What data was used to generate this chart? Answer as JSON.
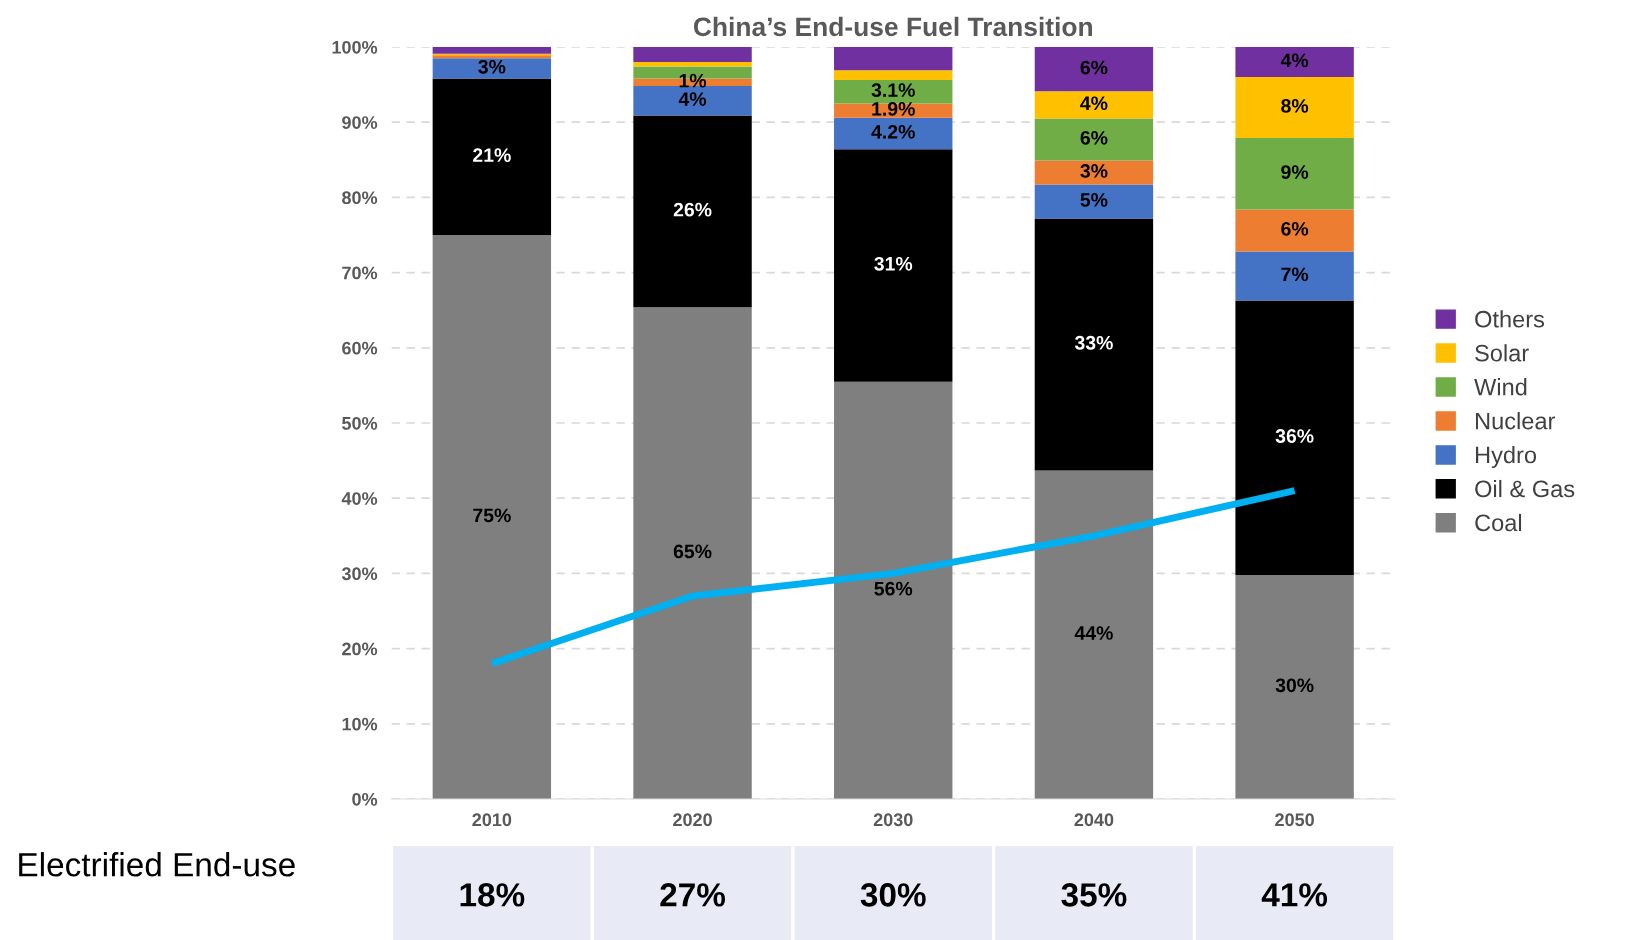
{
  "chart_data": {
    "type": "bar",
    "title": "China’s End-use Fuel Transition",
    "categories": [
      "2010",
      "2020",
      "2030",
      "2040",
      "2050"
    ],
    "stacked": true,
    "series": [
      {
        "name": "Coal",
        "color": "#7f7f7f",
        "values": [
          75.0,
          65.4,
          55.5,
          43.7,
          29.8
        ],
        "value_labels": [
          "75%",
          "65%",
          "56%",
          "44%",
          "30%"
        ]
      },
      {
        "name": "Oil & Gas",
        "color": "#000000",
        "values": [
          20.8,
          25.5,
          30.9,
          33.5,
          36.5
        ],
        "value_labels": [
          "21%",
          "26%",
          "31%",
          "33%",
          "36%"
        ]
      },
      {
        "name": "Hydro",
        "color": "#4472c4",
        "values": [
          2.7,
          3.9,
          4.2,
          4.5,
          6.5
        ],
        "value_labels": [
          "3%",
          "4%",
          "4.2%",
          "5%",
          "7%"
        ]
      },
      {
        "name": "Nuclear",
        "color": "#ed7d31",
        "values": [
          0.4,
          1.0,
          1.9,
          3.2,
          5.6
        ],
        "value_labels": [
          null,
          "1%",
          "1.9%",
          "3%",
          "6%"
        ]
      },
      {
        "name": "Wind",
        "color": "#70ad47",
        "values": [
          0,
          1.6,
          3.1,
          5.6,
          9.5
        ],
        "value_labels": [
          null,
          null,
          "3.1%",
          "6%",
          "9%"
        ]
      },
      {
        "name": "Solar",
        "color": "#ffc000",
        "values": [
          0.2,
          0.6,
          1.3,
          3.6,
          8.1
        ],
        "value_labels": [
          null,
          null,
          null,
          "4%",
          "8%"
        ]
      },
      {
        "name": "Others",
        "color": "#7030a0",
        "values": [
          0.9,
          2.1,
          3.1,
          5.9,
          4.0
        ],
        "value_labels": [
          null,
          null,
          null,
          "6%",
          "4%"
        ]
      },
      {
        "type": "line",
        "color": "#00b0f0",
        "values": [
          18,
          27,
          30,
          35,
          41
        ],
        "value_labels": [
          "18%",
          "27%",
          "30%",
          "35%",
          "41%"
        ]
      }
    ],
    "ylim": [
      0,
      100
    ],
    "yticks": [
      {
        "value": 0,
        "label": "0%"
      },
      {
        "value": 10,
        "label": "10%"
      },
      {
        "value": 20,
        "label": "20%"
      },
      {
        "value": 30,
        "label": "30%"
      },
      {
        "value": 40,
        "label": "40%"
      },
      {
        "value": 50,
        "label": "50%"
      },
      {
        "value": 60,
        "label": "60%"
      },
      {
        "value": 70,
        "label": "70%"
      },
      {
        "value": 80,
        "label": "80%"
      },
      {
        "value": 90,
        "label": "90%"
      },
      {
        "value": 100,
        "label": "100%"
      }
    ],
    "grid": "y",
    "legend": "right",
    "annotations": [
      "Electrified End-use"
    ]
  }
}
